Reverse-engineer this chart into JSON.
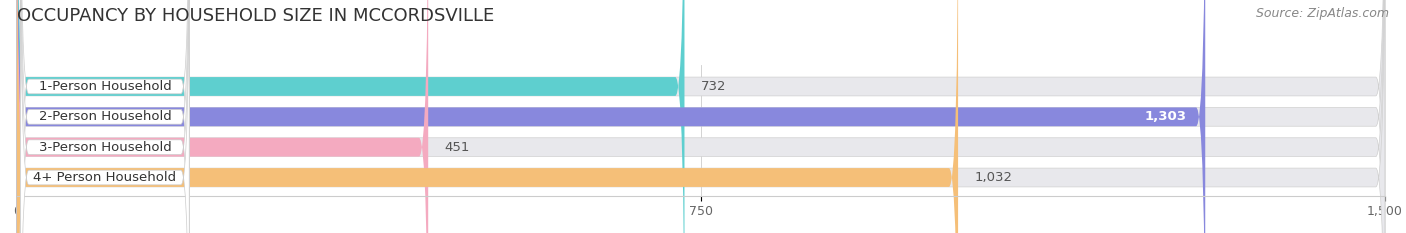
{
  "title": "OCCUPANCY BY HOUSEHOLD SIZE IN MCCORDSVILLE",
  "source": "Source: ZipAtlas.com",
  "categories": [
    "1-Person Household",
    "2-Person Household",
    "3-Person Household",
    "4+ Person Household"
  ],
  "values": [
    732,
    1303,
    451,
    1032
  ],
  "bar_colors": [
    "#5ecfcf",
    "#8888dd",
    "#f4aac0",
    "#f5bf78"
  ],
  "bar_bg_color": "#e8e8e8",
  "value_labels": [
    "732",
    "1,303",
    "451",
    "1,032"
  ],
  "xlim": [
    0,
    1500
  ],
  "xtick_labels": [
    "0",
    "750",
    "1,500"
  ],
  "background_color": "#ffffff",
  "title_fontsize": 13,
  "source_fontsize": 9,
  "label_fontsize": 9.5,
  "tick_fontsize": 9
}
